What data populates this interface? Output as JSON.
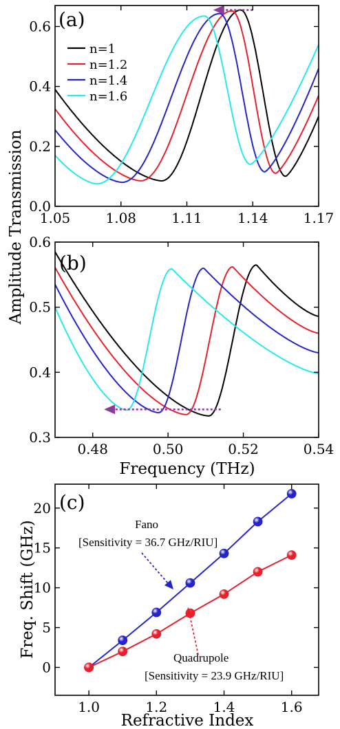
{
  "chart_data": [
    {
      "panel_label": "(a)",
      "type": "line",
      "xlabel": "",
      "ylabel": "Amplitude Transmission",
      "xlim": [
        1.05,
        1.17
      ],
      "ylim": [
        0.0,
        0.67
      ],
      "xticks": [
        "1.05",
        "1.08",
        "1.11",
        "1.14",
        "1.17"
      ],
      "yticks": [
        "0.0",
        "0.2",
        "0.4",
        "0.6"
      ],
      "legend": "top-left",
      "colors": [
        "#000000",
        "#e8202a",
        "#2424c8",
        "#27e8ee"
      ],
      "series": [
        {
          "name": "n=1",
          "dip_x": 1.0985,
          "dip_y": 0.085,
          "peak_x": 1.1345,
          "peak_y": 0.655,
          "min2_x": 1.155,
          "min2_y": 0.1,
          "start_y": 0.39,
          "end_y": 0.3
        },
        {
          "name": "n=1.2",
          "dip_x": 1.089,
          "dip_y": 0.085,
          "peak_x": 1.1305,
          "peak_y": 0.652,
          "min2_x": 1.1505,
          "min2_y": 0.11,
          "start_y": 0.325,
          "end_y": 0.37
        },
        {
          "name": "n=1.4",
          "dip_x": 1.0805,
          "dip_y": 0.08,
          "peak_x": 1.125,
          "peak_y": 0.643,
          "min2_x": 1.1455,
          "min2_y": 0.115,
          "start_y": 0.255,
          "end_y": 0.46
        },
        {
          "name": "n=1.6",
          "dip_x": 1.069,
          "dip_y": 0.075,
          "peak_x": 1.118,
          "peak_y": 0.635,
          "min2_x": 1.139,
          "min2_y": 0.14,
          "start_y": 0.17,
          "end_y": 0.54
        }
      ],
      "arrow": {
        "from_x": 1.14,
        "to_x": 1.122,
        "y": 0.655,
        "color": "#8a3c9c"
      }
    },
    {
      "panel_label": "(b)",
      "type": "line",
      "xlabel": "Frequency (THz)",
      "ylabel": "",
      "xlim": [
        0.47,
        0.54
      ],
      "ylim": [
        0.3,
        0.6
      ],
      "xticks": [
        "0.48",
        "0.50",
        "0.52",
        "0.54"
      ],
      "yticks": [
        "0.3",
        "0.4",
        "0.5",
        "0.6"
      ],
      "colors": [
        "#000000",
        "#e8202a",
        "#2424c8",
        "#27e8ee"
      ],
      "series": [
        {
          "dip_x": 0.5108,
          "dip_y": 0.333,
          "peak_x": 0.5235,
          "peak_y": 0.565,
          "start_y": 0.585,
          "end_y": 0.486
        },
        {
          "dip_x": 0.5048,
          "dip_y": 0.335,
          "peak_x": 0.5172,
          "peak_y": 0.562,
          "start_y": 0.561,
          "end_y": 0.46
        },
        {
          "dip_x": 0.4975,
          "dip_y": 0.338,
          "peak_x": 0.5095,
          "peak_y": 0.56,
          "start_y": 0.535,
          "end_y": 0.43
        },
        {
          "dip_x": 0.489,
          "dip_y": 0.342,
          "peak_x": 0.501,
          "peak_y": 0.559,
          "start_y": 0.5,
          "end_y": 0.398
        }
      ],
      "arrow": {
        "from_x": 0.514,
        "to_x": 0.483,
        "y": 0.343,
        "color": "#8a3c9c"
      }
    },
    {
      "panel_label": "(c)",
      "type": "scatter",
      "xlabel": "Refractive Index",
      "ylabel": "Freq. Shift (GHz)",
      "xlim": [
        0.9,
        1.68
      ],
      "ylim": [
        -3.5,
        23.0
      ],
      "xticks": [
        "1.0",
        "1.2",
        "1.4",
        "1.6"
      ],
      "yticks": [
        "0",
        "5",
        "10",
        "15",
        "20"
      ],
      "series": [
        {
          "name": "Fano",
          "color": "#2424c8",
          "x": [
            1.0,
            1.1,
            1.2,
            1.3,
            1.4,
            1.5,
            1.6
          ],
          "y": [
            0.0,
            3.4,
            6.9,
            10.6,
            14.3,
            18.3,
            21.8
          ]
        },
        {
          "name": "Quadrupole",
          "color": "#e8202a",
          "x": [
            1.0,
            1.1,
            1.2,
            1.3,
            1.4,
            1.5,
            1.6
          ],
          "y": [
            0.0,
            2.0,
            4.2,
            6.8,
            9.2,
            12.0,
            14.1
          ]
        }
      ],
      "annotations": {
        "fano_title": "Fano",
        "fano_sensitivity": "[Sensitivity = 36.7 GHz/RIU]",
        "quad_title": "Quadrupole",
        "quad_sensitivity": "[Sensitivity = 23.9 GHz/RIU]"
      }
    }
  ]
}
